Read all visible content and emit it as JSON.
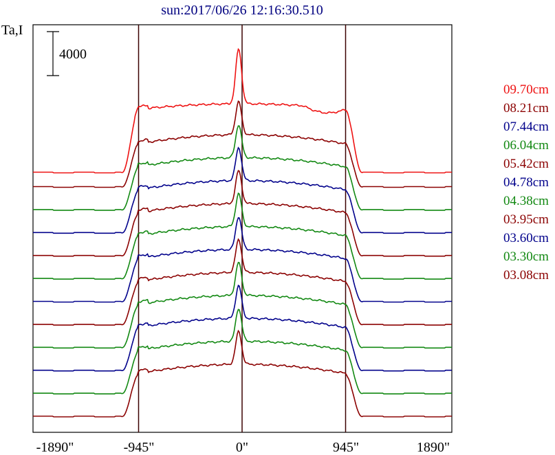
{
  "chart_data": {
    "type": "line",
    "title": "sun:2017/06/26 12:16:30.510",
    "ylabel": "Ta,I",
    "scale_bar_label": "4000",
    "x_ticks": [
      "-1890\"",
      "-945\"",
      "0\"",
      "945\"",
      "1890\""
    ],
    "x_tick_values": [
      -1890,
      -945,
      0,
      945,
      1890
    ],
    "xlim": [
      -1890,
      1890
    ],
    "vertical_lines": [
      -945,
      0,
      945
    ],
    "grid": false,
    "legend_position": "right",
    "colors": {
      "red": "#ee1111",
      "darkred": "#8b0000",
      "blue": "#00008b",
      "green": "#118811",
      "axis": "#000000",
      "title": "#000080"
    },
    "series": [
      {
        "name": "09.70cm",
        "color": "#ee1111",
        "line_index": 11
      },
      {
        "name": "08.21cm",
        "color": "#8b0000",
        "line_index": 10
      },
      {
        "name": "07.44cm",
        "color": "#00008b",
        "line_index": 9
      },
      {
        "name": "06.04cm",
        "color": "#118811",
        "line_index": 8
      },
      {
        "name": "05.42cm",
        "color": "#8b0000",
        "line_index": 7
      },
      {
        "name": "04.78cm",
        "color": "#00008b",
        "line_index": 6
      },
      {
        "name": "04.38cm",
        "color": "#118811",
        "line_index": 5
      },
      {
        "name": "03.95cm",
        "color": "#8b0000",
        "line_index": 4
      },
      {
        "name": "03.60cm",
        "color": "#00008b",
        "line_index": 3
      },
      {
        "name": "03.30cm",
        "color": "#118811",
        "line_index": 2
      },
      {
        "name": "03.08cm",
        "color": "#8b0000",
        "line_index": 1
      }
    ],
    "profile_lines": [
      {
        "color": "#8b0000",
        "profile": "base"
      },
      {
        "color": "#118811",
        "profile": "base"
      },
      {
        "color": "#00008b",
        "profile": "base"
      },
      {
        "color": "#118811",
        "profile": "base"
      },
      {
        "color": "#8b0000",
        "profile": "base"
      },
      {
        "color": "#00008b",
        "profile": "base"
      },
      {
        "color": "#118811",
        "profile": "base"
      },
      {
        "color": "#8b0000",
        "profile": "base"
      },
      {
        "color": "#00008b",
        "profile": "base"
      },
      {
        "color": "#118811",
        "profile": "base"
      },
      {
        "color": "#8b0000",
        "profile": "base"
      },
      {
        "color": "#ee1111",
        "profile": "red"
      }
    ]
  }
}
